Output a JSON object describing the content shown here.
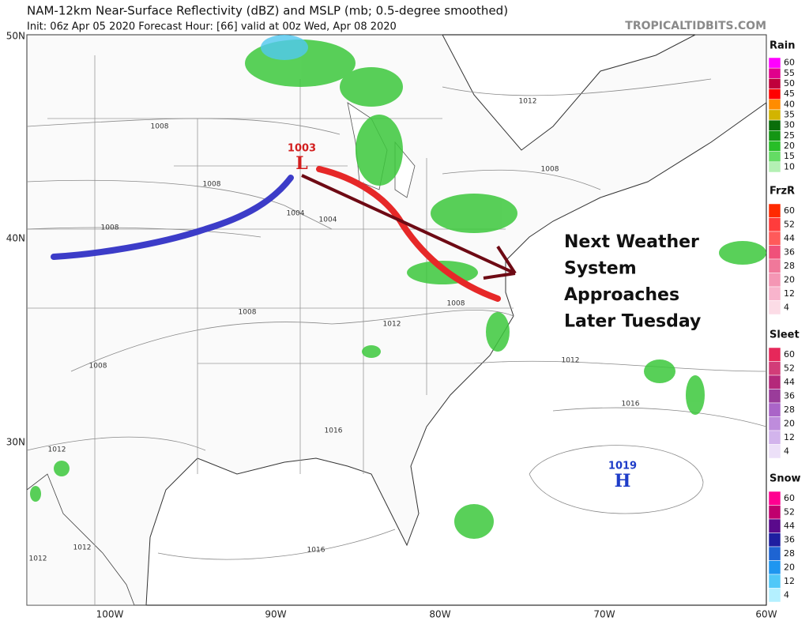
{
  "header": {
    "title": "NAM-12km Near-Surface Reflectivity (dBZ) and MSLP (mb; 0.5-degree smoothed)",
    "subtitle": "Init: 06z Apr 05 2020   Forecast Hour: [66]   valid at 00z Wed, Apr 08 2020",
    "site": "TROPICALTIDBITS.COM"
  },
  "map": {
    "lat_labels": [
      "50N",
      "40N",
      "30N"
    ],
    "lon_labels": [
      "100W",
      "90W",
      "80W",
      "70W",
      "60W"
    ],
    "isobar_labels": [
      "1012",
      "1008",
      "1008",
      "1004",
      "1004",
      "1008",
      "1008",
      "1008",
      "1008",
      "1012",
      "1008",
      "1012",
      "1016",
      "1016",
      "1012",
      "1012",
      "1016",
      "1012"
    ],
    "pressure_centers": [
      {
        "value": "1003",
        "letter": "L"
      },
      {
        "value": "1019",
        "letter": "H"
      }
    ],
    "annotation": [
      "Next Weather",
      "System",
      "Approaches",
      "Later Tuesday"
    ]
  },
  "legend": {
    "panels": [
      {
        "title": "Rain",
        "levels": [
          "60",
          "55",
          "50",
          "45",
          "40",
          "35",
          "30",
          "25",
          "20",
          "15",
          "10"
        ],
        "colors": [
          "#ff00ff",
          "#e0008c",
          "#c0003c",
          "#ff0000",
          "#ff8c00",
          "#d2b400",
          "#0a6e0a",
          "#149614",
          "#28be28",
          "#64dc64",
          "#b4f0b4"
        ]
      },
      {
        "title": "FrzR",
        "levels": [
          "60",
          "52",
          "44",
          "36",
          "28",
          "20",
          "12",
          "4"
        ],
        "colors": [
          "#ff2a00",
          "#ff3c3c",
          "#ff5a5a",
          "#f0507a",
          "#f0789a",
          "#f496b4",
          "#f8b4cc",
          "#fcdce6"
        ]
      },
      {
        "title": "Sleet",
        "levels": [
          "60",
          "52",
          "44",
          "36",
          "28",
          "20",
          "12",
          "4"
        ],
        "colors": [
          "#e6285a",
          "#d23c78",
          "#b4287a",
          "#9a3c9a",
          "#aa64c8",
          "#be8cdc",
          "#d2b4ec",
          "#ece0f8"
        ]
      },
      {
        "title": "Snow",
        "levels": [
          "60",
          "52",
          "44",
          "36",
          "28",
          "20",
          "12",
          "4"
        ],
        "colors": [
          "#ff0090",
          "#c0006e",
          "#5a0a8c",
          "#1e1ea0",
          "#1e64d2",
          "#1e96f0",
          "#50c8f8",
          "#b4f0ff"
        ]
      }
    ]
  }
}
